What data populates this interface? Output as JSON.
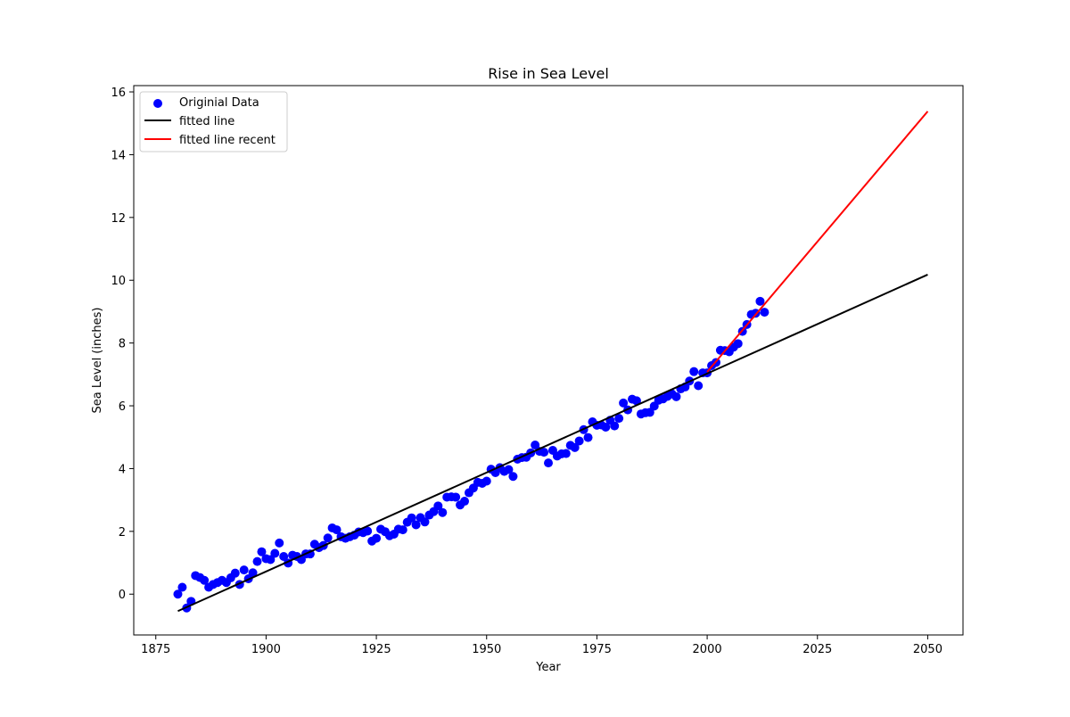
{
  "chart_data": {
    "type": "scatter",
    "title": "Rise in Sea Level",
    "xlabel": "Year",
    "ylabel": "Sea Level (inches)",
    "xlim": [
      1870,
      2058
    ],
    "ylim": [
      -1.3,
      16.2
    ],
    "xticks": [
      1875,
      1900,
      1925,
      1950,
      1975,
      2000,
      2025,
      2050
    ],
    "yticks": [
      0,
      2,
      4,
      6,
      8,
      10,
      12,
      14,
      16
    ],
    "grid": false,
    "legend_position": "upper-left",
    "colors": {
      "data": "#0000ff",
      "fit": "#000000",
      "fit_recent": "#ff0000"
    },
    "series": [
      {
        "name": "Originial Data",
        "kind": "scatter",
        "x": [
          1880,
          1881,
          1882,
          1883,
          1884,
          1885,
          1886,
          1887,
          1888,
          1889,
          1890,
          1891,
          1892,
          1893,
          1894,
          1895,
          1896,
          1897,
          1898,
          1899,
          1900,
          1901,
          1902,
          1903,
          1904,
          1905,
          1906,
          1907,
          1908,
          1909,
          1910,
          1911,
          1912,
          1913,
          1914,
          1915,
          1916,
          1917,
          1918,
          1919,
          1920,
          1921,
          1922,
          1923,
          1924,
          1925,
          1926,
          1927,
          1928,
          1929,
          1930,
          1931,
          1932,
          1933,
          1934,
          1935,
          1936,
          1937,
          1938,
          1939,
          1940,
          1941,
          1942,
          1943,
          1944,
          1945,
          1946,
          1947,
          1948,
          1949,
          1950,
          1951,
          1952,
          1953,
          1954,
          1955,
          1956,
          1957,
          1958,
          1959,
          1960,
          1961,
          1962,
          1963,
          1964,
          1965,
          1966,
          1967,
          1968,
          1969,
          1970,
          1971,
          1972,
          1973,
          1974,
          1975,
          1976,
          1977,
          1978,
          1979,
          1980,
          1981,
          1982,
          1983,
          1984,
          1985,
          1986,
          1987,
          1988,
          1989,
          1990,
          1991,
          1992,
          1993,
          1994,
          1995,
          1996,
          1997,
          1998,
          1999,
          2000,
          2001,
          2002,
          2003,
          2004,
          2005,
          2006,
          2007,
          2008,
          2009,
          2010,
          2011,
          2012,
          2013
        ],
        "y": [
          0.0,
          0.22,
          -0.44,
          -0.23,
          0.59,
          0.53,
          0.44,
          0.22,
          0.31,
          0.37,
          0.44,
          0.37,
          0.52,
          0.67,
          0.31,
          0.77,
          0.49,
          0.68,
          1.04,
          1.35,
          1.13,
          1.1,
          1.3,
          1.63,
          1.2,
          0.99,
          1.24,
          1.2,
          1.1,
          1.28,
          1.28,
          1.59,
          1.48,
          1.55,
          1.79,
          2.11,
          2.05,
          1.83,
          1.78,
          1.83,
          1.88,
          1.98,
          1.96,
          2.01,
          1.69,
          1.78,
          2.07,
          1.99,
          1.86,
          1.91,
          2.07,
          2.05,
          2.29,
          2.43,
          2.21,
          2.44,
          2.3,
          2.52,
          2.63,
          2.81,
          2.6,
          3.09,
          3.1,
          3.09,
          2.84,
          2.96,
          3.23,
          3.38,
          3.56,
          3.53,
          3.6,
          3.98,
          3.87,
          4.03,
          3.91,
          3.97,
          3.75,
          4.3,
          4.35,
          4.36,
          4.5,
          4.75,
          4.55,
          4.52,
          4.18,
          4.58,
          4.4,
          4.47,
          4.48,
          4.74,
          4.67,
          4.88,
          5.24,
          4.99,
          5.49,
          5.38,
          5.39,
          5.32,
          5.54,
          5.36,
          5.6,
          6.09,
          5.87,
          6.21,
          6.16,
          5.74,
          5.78,
          5.79,
          5.99,
          6.18,
          6.22,
          6.3,
          6.38,
          6.29,
          6.54,
          6.6,
          6.79,
          7.09,
          6.64,
          7.05,
          7.05,
          7.28,
          7.38,
          7.77,
          7.76,
          7.72,
          7.87,
          7.98,
          8.37,
          8.59,
          8.91,
          8.95,
          9.33,
          8.98
        ]
      },
      {
        "name": "fitted line",
        "kind": "line",
        "x": [
          1880,
          2050
        ],
        "y": [
          -0.54,
          10.18
        ]
      },
      {
        "name": "fitted line recent",
        "kind": "line",
        "x": [
          2000,
          2050
        ],
        "y": [
          7.08,
          15.38
        ]
      }
    ]
  }
}
